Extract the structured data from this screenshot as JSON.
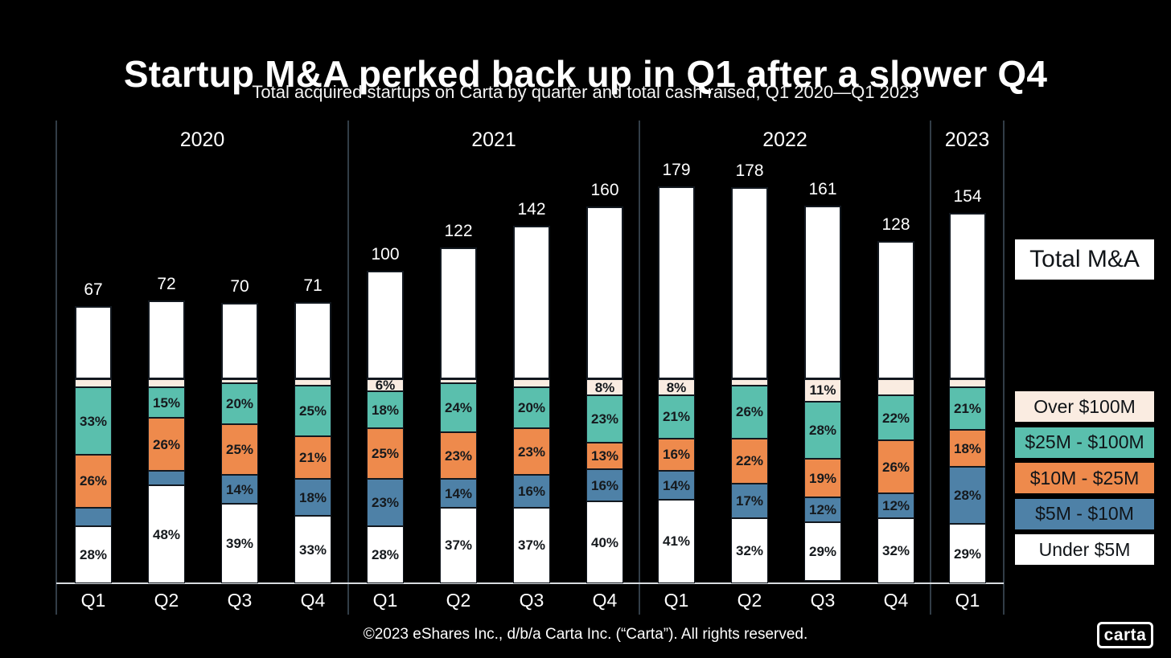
{
  "chart_data": {
    "type": "bar",
    "variant": "stacked_percent_columns_with_total_height_extension",
    "title": "Startup M&A perked back up in Q1 after a slower Q4",
    "subtitle": "Total acquired startups on Carta by quarter and total cash raised, Q1 2020—Q1 2023",
    "legend_position": "right",
    "total_legend_label": "Total M&A",
    "colors": {
      "background": "#000000",
      "axis_line": "#d8dcdf",
      "group_separator": "#323d47",
      "segment_border": "#12181f",
      "label_text": "#15191d"
    },
    "buckets": [
      {
        "id": "under-5m",
        "label": "Under $5M",
        "color": "#ffffff"
      },
      {
        "id": "5m-10m",
        "label": "$5M - $10M",
        "color": "#4e81a7"
      },
      {
        "id": "10m-25m",
        "label": "$10M - $25M",
        "color": "#ee8a4c"
      },
      {
        "id": "25m-100m",
        "label": "$25M - $100M",
        "color": "#5abfad"
      },
      {
        "id": "over-100m",
        "label": "Over $100M",
        "color": "#faece1"
      }
    ],
    "bars": [
      {
        "year": "2020",
        "quarter": "Q1",
        "total": 67,
        "segments": [
          {
            "bucket": "under-5m",
            "pct": 28,
            "label": "28%"
          },
          {
            "bucket": "5m-10m",
            "pct": 9,
            "label": ""
          },
          {
            "bucket": "10m-25m",
            "pct": 26,
            "label": "26%"
          },
          {
            "bucket": "25m-100m",
            "pct": 33,
            "label": "33%"
          },
          {
            "bucket": "over-100m",
            "pct": 4,
            "label": ""
          }
        ]
      },
      {
        "year": "2020",
        "quarter": "Q2",
        "total": 72,
        "segments": [
          {
            "bucket": "under-5m",
            "pct": 48,
            "label": "48%"
          },
          {
            "bucket": "5m-10m",
            "pct": 7,
            "label": ""
          },
          {
            "bucket": "10m-25m",
            "pct": 26,
            "label": "26%"
          },
          {
            "bucket": "25m-100m",
            "pct": 15,
            "label": "15%"
          },
          {
            "bucket": "over-100m",
            "pct": 4,
            "label": ""
          }
        ]
      },
      {
        "year": "2020",
        "quarter": "Q3",
        "total": 70,
        "segments": [
          {
            "bucket": "under-5m",
            "pct": 39,
            "label": "39%"
          },
          {
            "bucket": "5m-10m",
            "pct": 14,
            "label": "14%"
          },
          {
            "bucket": "10m-25m",
            "pct": 25,
            "label": "25%"
          },
          {
            "bucket": "25m-100m",
            "pct": 20,
            "label": "20%"
          },
          {
            "bucket": "over-100m",
            "pct": 2,
            "label": ""
          }
        ]
      },
      {
        "year": "2020",
        "quarter": "Q4",
        "total": 71,
        "segments": [
          {
            "bucket": "under-5m",
            "pct": 33,
            "label": "33%"
          },
          {
            "bucket": "5m-10m",
            "pct": 18,
            "label": "18%"
          },
          {
            "bucket": "10m-25m",
            "pct": 21,
            "label": "21%"
          },
          {
            "bucket": "25m-100m",
            "pct": 25,
            "label": "25%"
          },
          {
            "bucket": "over-100m",
            "pct": 3,
            "label": ""
          }
        ]
      },
      {
        "year": "2021",
        "quarter": "Q1",
        "total": 100,
        "segments": [
          {
            "bucket": "under-5m",
            "pct": 28,
            "label": "28%"
          },
          {
            "bucket": "5m-10m",
            "pct": 23,
            "label": "23%"
          },
          {
            "bucket": "10m-25m",
            "pct": 25,
            "label": "25%"
          },
          {
            "bucket": "25m-100m",
            "pct": 18,
            "label": "18%"
          },
          {
            "bucket": "over-100m",
            "pct": 6,
            "label": "6%"
          }
        ]
      },
      {
        "year": "2021",
        "quarter": "Q2",
        "total": 122,
        "segments": [
          {
            "bucket": "under-5m",
            "pct": 37,
            "label": "37%"
          },
          {
            "bucket": "5m-10m",
            "pct": 14,
            "label": "14%"
          },
          {
            "bucket": "10m-25m",
            "pct": 23,
            "label": "23%"
          },
          {
            "bucket": "25m-100m",
            "pct": 24,
            "label": "24%"
          },
          {
            "bucket": "over-100m",
            "pct": 2,
            "label": ""
          }
        ]
      },
      {
        "year": "2021",
        "quarter": "Q3",
        "total": 142,
        "segments": [
          {
            "bucket": "under-5m",
            "pct": 37,
            "label": "37%"
          },
          {
            "bucket": "5m-10m",
            "pct": 16,
            "label": "16%"
          },
          {
            "bucket": "10m-25m",
            "pct": 23,
            "label": "23%"
          },
          {
            "bucket": "25m-100m",
            "pct": 20,
            "label": "20%"
          },
          {
            "bucket": "over-100m",
            "pct": 4,
            "label": ""
          }
        ]
      },
      {
        "year": "2021",
        "quarter": "Q4",
        "total": 160,
        "segments": [
          {
            "bucket": "under-5m",
            "pct": 40,
            "label": "40%"
          },
          {
            "bucket": "5m-10m",
            "pct": 16,
            "label": "16%"
          },
          {
            "bucket": "10m-25m",
            "pct": 13,
            "label": "13%"
          },
          {
            "bucket": "25m-100m",
            "pct": 23,
            "label": "23%"
          },
          {
            "bucket": "over-100m",
            "pct": 8,
            "label": "8%"
          }
        ]
      },
      {
        "year": "2022",
        "quarter": "Q1",
        "total": 179,
        "segments": [
          {
            "bucket": "under-5m",
            "pct": 41,
            "label": "41%"
          },
          {
            "bucket": "5m-10m",
            "pct": 14,
            "label": "14%"
          },
          {
            "bucket": "10m-25m",
            "pct": 16,
            "label": "16%"
          },
          {
            "bucket": "25m-100m",
            "pct": 21,
            "label": "21%"
          },
          {
            "bucket": "over-100m",
            "pct": 8,
            "label": "8%"
          }
        ]
      },
      {
        "year": "2022",
        "quarter": "Q2",
        "total": 178,
        "segments": [
          {
            "bucket": "under-5m",
            "pct": 32,
            "label": "32%"
          },
          {
            "bucket": "5m-10m",
            "pct": 17,
            "label": "17%"
          },
          {
            "bucket": "10m-25m",
            "pct": 22,
            "label": "22%"
          },
          {
            "bucket": "25m-100m",
            "pct": 26,
            "label": "26%"
          },
          {
            "bucket": "over-100m",
            "pct": 3,
            "label": ""
          }
        ]
      },
      {
        "year": "2022",
        "quarter": "Q3",
        "total": 161,
        "segments": [
          {
            "bucket": "under-5m",
            "pct": 29,
            "label": "29%"
          },
          {
            "bucket": "5m-10m",
            "pct": 12,
            "label": "12%"
          },
          {
            "bucket": "10m-25m",
            "pct": 19,
            "label": "19%"
          },
          {
            "bucket": "25m-100m",
            "pct": 28,
            "label": "28%"
          },
          {
            "bucket": "over-100m",
            "pct": 11,
            "label": "11%"
          }
        ]
      },
      {
        "year": "2022",
        "quarter": "Q4",
        "total": 128,
        "segments": [
          {
            "bucket": "under-5m",
            "pct": 32,
            "label": "32%"
          },
          {
            "bucket": "5m-10m",
            "pct": 12,
            "label": "12%"
          },
          {
            "bucket": "10m-25m",
            "pct": 26,
            "label": "26%"
          },
          {
            "bucket": "25m-100m",
            "pct": 22,
            "label": "22%"
          },
          {
            "bucket": "over-100m",
            "pct": 8,
            "label": ""
          }
        ]
      },
      {
        "year": "2023",
        "quarter": "Q1",
        "total": 154,
        "segments": [
          {
            "bucket": "under-5m",
            "pct": 29,
            "label": "29%"
          },
          {
            "bucket": "5m-10m",
            "pct": 28,
            "label": "28%"
          },
          {
            "bucket": "10m-25m",
            "pct": 18,
            "label": "18%"
          },
          {
            "bucket": "25m-100m",
            "pct": 21,
            "label": "21%"
          },
          {
            "bucket": "over-100m",
            "pct": 4,
            "label": ""
          }
        ]
      }
    ]
  },
  "legend": {
    "total_label": "Total M&A"
  },
  "footer": {
    "copyright": "©2023 eShares Inc., d/b/a Carta Inc. (“Carta”). All rights reserved."
  },
  "logo": {
    "text": "carta"
  }
}
